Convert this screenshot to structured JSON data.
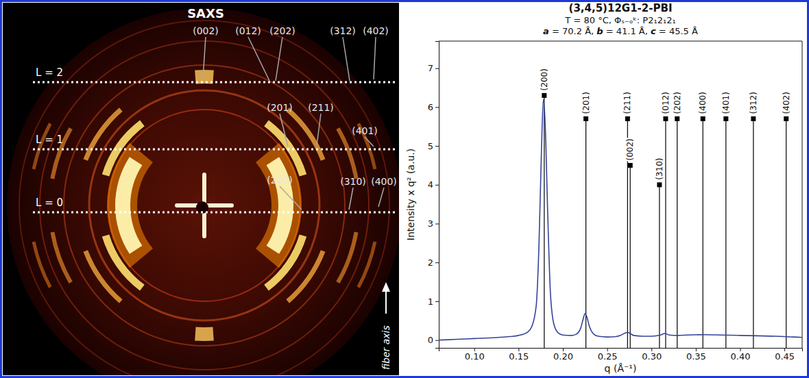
{
  "pattern": {
    "title": "SAXS",
    "layer_lines": [
      "L = 2",
      "L = 1",
      "L = 0"
    ],
    "reflection_labels": [
      "(002)",
      "(012)",
      "(202)",
      "(312)",
      "(402)",
      "(201)",
      "(211)",
      "(401)",
      "(310)",
      "(400)",
      "(200)"
    ],
    "axis_label": "fiber axis"
  },
  "chart_data": {
    "type": "line",
    "title": "(3,4,5)12G1-2-PBI",
    "subtitle": [
      "T = 80 °C, Φₛ₋ₒᵏ: P2₁2₁2₁",
      "a = 70.2 Å, b = 41.1 Å, c = 45.5 Å"
    ],
    "x_label": "q (Å⁻¹)",
    "y_label": "Intensity x q² (a.u.)",
    "x": [
      0.06,
      0.08,
      0.1,
      0.12,
      0.14,
      0.15,
      0.16,
      0.165,
      0.17,
      0.173,
      0.176,
      0.178,
      0.18,
      0.183,
      0.186,
      0.19,
      0.195,
      0.2,
      0.21,
      0.215,
      0.22,
      0.223,
      0.225,
      0.227,
      0.23,
      0.235,
      0.24,
      0.25,
      0.26,
      0.265,
      0.27,
      0.273,
      0.276,
      0.28,
      0.29,
      0.3,
      0.31,
      0.315,
      0.32,
      0.33,
      0.34,
      0.36,
      0.38,
      0.4,
      0.42,
      0.44,
      0.46,
      0.47
    ],
    "series": [
      {
        "color": "#34449a",
        "values": [
          0.0,
          0.02,
          0.04,
          0.06,
          0.09,
          0.12,
          0.2,
          0.35,
          0.9,
          2.4,
          5.0,
          6.2,
          5.6,
          3.2,
          1.2,
          0.4,
          0.18,
          0.13,
          0.12,
          0.15,
          0.3,
          0.55,
          0.68,
          0.6,
          0.35,
          0.15,
          0.1,
          0.08,
          0.09,
          0.12,
          0.18,
          0.2,
          0.17,
          0.12,
          0.1,
          0.1,
          0.13,
          0.17,
          0.13,
          0.12,
          0.13,
          0.14,
          0.13,
          0.12,
          0.11,
          0.1,
          0.08,
          0.07
        ]
      }
    ],
    "reflections": {
      "type": "stem",
      "marker": "square",
      "color": "#000000",
      "labels": [
        "(200)",
        "(201)",
        "(211)",
        "(002)",
        "(310)",
        "(012)",
        "(202)",
        "(400)",
        "(401)",
        "(312)",
        "(402)"
      ],
      "x": [
        0.179,
        0.226,
        0.273,
        0.276,
        0.309,
        0.316,
        0.329,
        0.358,
        0.384,
        0.415,
        0.452
      ],
      "values": [
        6.3,
        5.7,
        5.7,
        4.5,
        4.0,
        5.7,
        5.7,
        5.7,
        5.7,
        5.7,
        5.7
      ]
    },
    "xlim": [
      0.06,
      0.47
    ],
    "ylim": [
      -0.2,
      7.7
    ],
    "xticks": [
      {
        "value": 0.1,
        "label": "0.10"
      },
      0.15,
      {
        "value": 0.2,
        "label": "0.20"
      },
      0.25,
      {
        "value": 0.3,
        "label": "0.30"
      },
      0.35,
      {
        "value": 0.4,
        "label": "0.40"
      },
      0.45
    ],
    "yticks": [
      0,
      1,
      2,
      3,
      4,
      5,
      6,
      7
    ],
    "grid": false
  }
}
